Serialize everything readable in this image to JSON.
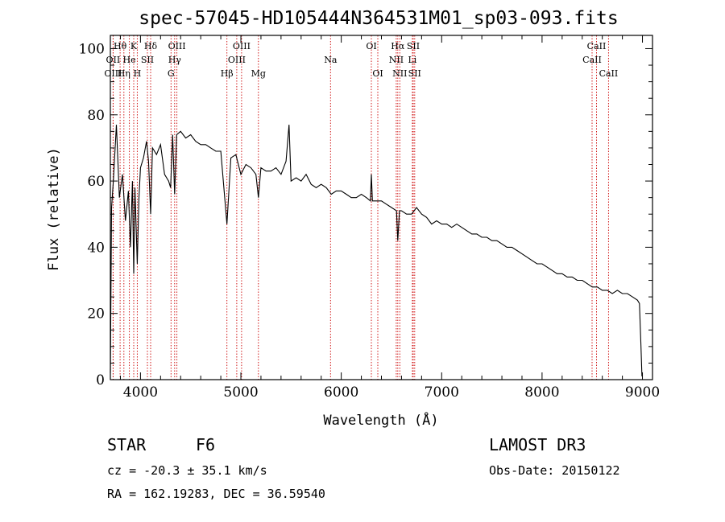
{
  "chart_data": {
    "type": "line",
    "title": "spec-57045-HD105444N364531M01_sp03-093.fits",
    "xlabel": "Wavelength (Å)",
    "ylabel": "Flux (relative)",
    "xlim": [
      3700,
      9100
    ],
    "ylim": [
      0,
      104
    ],
    "xticks": [
      4000,
      5000,
      6000,
      7000,
      8000,
      9000
    ],
    "yticks": [
      0,
      20,
      40,
      60,
      80,
      100
    ],
    "series": [
      {
        "name": "flux",
        "x": [
          3700,
          3712,
          3730,
          3760,
          3790,
          3820,
          3850,
          3880,
          3900,
          3920,
          3933,
          3945,
          3968,
          3985,
          4000,
          4030,
          4060,
          4080,
          4101,
          4120,
          4160,
          4200,
          4240,
          4280,
          4300,
          4320,
          4340,
          4360,
          4400,
          4450,
          4500,
          4550,
          4600,
          4650,
          4700,
          4750,
          4800,
          4861,
          4900,
          4950,
          5000,
          5050,
          5100,
          5150,
          5175,
          5200,
          5250,
          5300,
          5350,
          5400,
          5450,
          5480,
          5500,
          5550,
          5600,
          5650,
          5700,
          5750,
          5800,
          5850,
          5900,
          5950,
          6000,
          6050,
          6100,
          6150,
          6200,
          6250,
          6290,
          6300,
          6310,
          6350,
          6400,
          6450,
          6500,
          6550,
          6563,
          6580,
          6600,
          6650,
          6700,
          6750,
          6800,
          6850,
          6900,
          6950,
          7000,
          7050,
          7100,
          7150,
          7200,
          7250,
          7300,
          7350,
          7400,
          7450,
          7500,
          7550,
          7600,
          7650,
          7700,
          7750,
          7800,
          7850,
          7900,
          7950,
          8000,
          8050,
          8100,
          8150,
          8200,
          8250,
          8300,
          8350,
          8400,
          8450,
          8500,
          8550,
          8600,
          8650,
          8700,
          8750,
          8800,
          8850,
          8900,
          8950,
          8970,
          8985,
          8995
        ],
        "y": [
          2,
          52,
          60,
          77,
          55,
          62,
          48,
          57,
          40,
          60,
          32,
          58,
          35,
          55,
          64,
          67,
          72,
          66,
          50,
          70,
          68,
          71,
          62,
          60,
          58,
          74,
          56,
          74,
          75,
          73,
          74,
          72,
          71,
          71,
          70,
          69,
          69,
          47,
          67,
          68,
          62,
          65,
          64,
          62,
          55,
          64,
          63,
          63,
          64,
          62,
          66,
          77,
          60,
          61,
          60,
          62,
          59,
          58,
          59,
          58,
          56,
          57,
          57,
          56,
          55,
          55,
          56,
          55,
          54,
          62,
          54,
          54,
          54,
          53,
          52,
          51,
          42,
          51,
          51,
          50,
          50,
          52,
          50,
          49,
          47,
          48,
          47,
          47,
          46,
          47,
          46,
          45,
          44,
          44,
          43,
          43,
          42,
          42,
          41,
          40,
          40,
          39,
          38,
          37,
          36,
          35,
          35,
          34,
          33,
          32,
          32,
          31,
          31,
          30,
          30,
          29,
          28,
          28,
          27,
          27,
          26,
          27,
          26,
          26,
          25,
          24,
          23,
          10,
          1
        ]
      }
    ],
    "line_labels": [
      {
        "label": "Hθ",
        "wavelength": 3797,
        "row": 1
      },
      {
        "label": "OII",
        "wavelength": 3727,
        "row": 2
      },
      {
        "label": "OIII",
        "wavelength": 3727,
        "row": 3
      },
      {
        "label": "K",
        "wavelength": 3933,
        "row": 1
      },
      {
        "label": "He",
        "wavelength": 3889,
        "row": 2
      },
      {
        "label": "Hη",
        "wavelength": 3835,
        "row": 3
      },
      {
        "label": "SII",
        "wavelength": 4069,
        "row": 2
      },
      {
        "label": "H",
        "wavelength": 3968,
        "row": 3
      },
      {
        "label": "Hδ",
        "wavelength": 4101,
        "row": 1
      },
      {
        "label": "OIII",
        "wavelength": 4363,
        "row": 1
      },
      {
        "label": "Hγ",
        "wavelength": 4340,
        "row": 2
      },
      {
        "label": "G",
        "wavelength": 4304,
        "row": 3
      },
      {
        "label": "OIII",
        "wavelength": 5007,
        "row": 1
      },
      {
        "label": "OIII",
        "wavelength": 4959,
        "row": 2
      },
      {
        "label": "Hβ",
        "wavelength": 4861,
        "row": 3
      },
      {
        "label": "Mg",
        "wavelength": 5175,
        "row": 3
      },
      {
        "label": "Na",
        "wavelength": 5893,
        "row": 2
      },
      {
        "label": "OI",
        "wavelength": 6300,
        "row": 1
      },
      {
        "label": "OI",
        "wavelength": 6364,
        "row": 3
      },
      {
        "label": "Hα",
        "wavelength": 6563,
        "row": 1
      },
      {
        "label": "NII",
        "wavelength": 6548,
        "row": 2
      },
      {
        "label": "NII",
        "wavelength": 6583,
        "row": 3
      },
      {
        "label": "SII",
        "wavelength": 6717,
        "row": 1
      },
      {
        "label": "Li",
        "wavelength": 6708,
        "row": 2
      },
      {
        "label": "SII",
        "wavelength": 6731,
        "row": 3
      },
      {
        "label": "CaII",
        "wavelength": 8542,
        "row": 1
      },
      {
        "label": "CaII",
        "wavelength": 8498,
        "row": 2
      },
      {
        "label": "CaII",
        "wavelength": 8662,
        "row": 3
      }
    ],
    "line_colors": {
      "spectrum": "#000000",
      "marker": "#cc0000"
    }
  },
  "info": {
    "class": "STAR",
    "subclass": "F6",
    "redshift": "cz = -20.3 ± 35.1 km/s",
    "coords": "RA = 162.19283, DEC =  36.59540",
    "survey": "LAMOST DR3",
    "obs_date": "Obs-Date: 20150122"
  }
}
